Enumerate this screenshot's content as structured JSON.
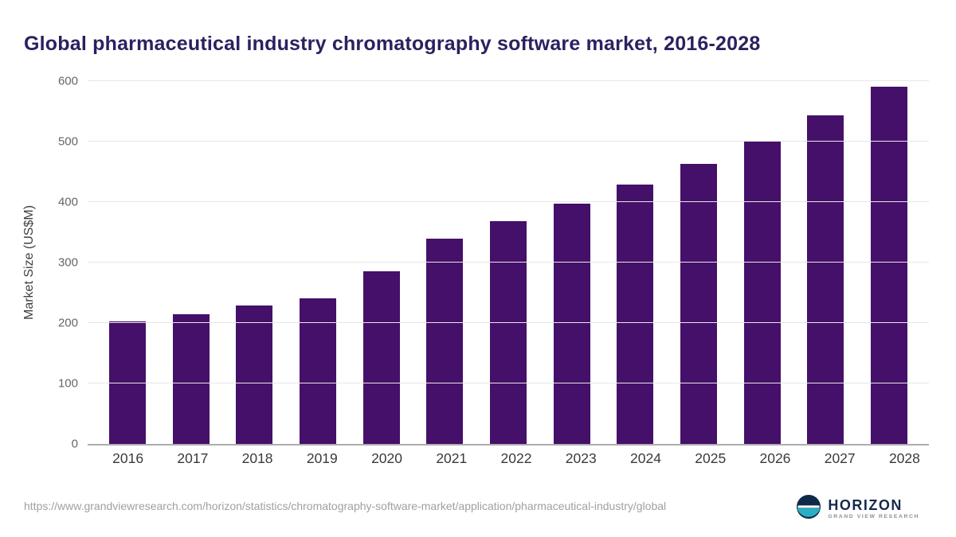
{
  "header": {
    "title": "Global pharmaceutical industry chromatography software market, 2016-2028"
  },
  "chart_data": {
    "type": "bar",
    "title": "Global pharmaceutical industry chromatography software market, 2016-2028",
    "categories": [
      "2016",
      "2017",
      "2018",
      "2019",
      "2020",
      "2021",
      "2022",
      "2023",
      "2024",
      "2025",
      "2026",
      "2027",
      "2028"
    ],
    "values": [
      202,
      214,
      229,
      241,
      286,
      340,
      368,
      397,
      429,
      463,
      501,
      544,
      591
    ],
    "xlabel": "",
    "ylabel": "Market Size (US$M)",
    "ylim": [
      0,
      600
    ],
    "ytick_step": 100,
    "grid": true,
    "legend": "none",
    "bar_color": "#451069"
  },
  "footer": {
    "source_url": "https://www.grandviewresearch.com/horizon/statistics/chromatography-software-market/application/pharmaceutical-industry/global",
    "logo": {
      "name": "HORIZON",
      "subtitle": "GRAND VIEW RESEARCH",
      "icon_navy": "#0e2a47",
      "icon_teal": "#27b0c4"
    }
  },
  "colors": {
    "title_text": "#2b2160",
    "bar": "#451069",
    "gridline": "#e7e7e7",
    "axis_line": "#adadad",
    "tick_text": "#666666"
  }
}
